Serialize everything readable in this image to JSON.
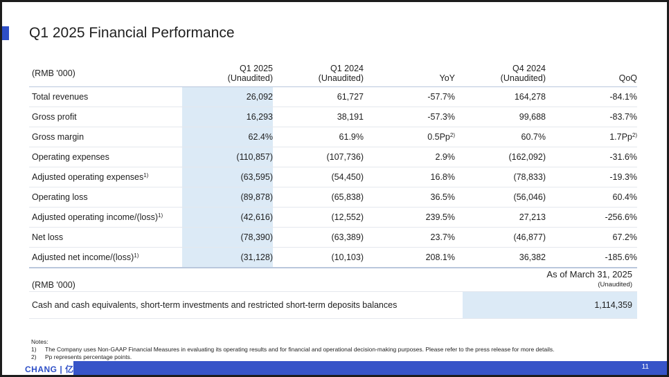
{
  "page": {
    "title": "Q1 2025 Financial Performance",
    "number": "11",
    "logo_text": "CHANG | 亿航"
  },
  "colors": {
    "accent": "#2e4fc7",
    "highlight": "#dceaf6",
    "footer_bar": "#3754c8"
  },
  "table1": {
    "header": {
      "label": "(RMB '000)",
      "cols": [
        {
          "name": "Q1 2025",
          "sub": "(Unaudited)"
        },
        {
          "name": "Q1 2024",
          "sub": "(Unaudited)"
        },
        {
          "name": "YoY",
          "sub": ""
        },
        {
          "name": "Q4 2024",
          "sub": "(Unaudited)"
        },
        {
          "name": "QoQ",
          "sub": ""
        }
      ]
    },
    "rows": [
      {
        "label": "Total revenues",
        "label_sup": "",
        "values": [
          "26,092",
          "61,727",
          "-57.7%",
          "164,278",
          "-84.1%"
        ],
        "sups": [
          "",
          "",
          "",
          "",
          ""
        ]
      },
      {
        "label": "Gross profit",
        "label_sup": "",
        "values": [
          "16,293",
          "38,191",
          "-57.3%",
          "99,688",
          "-83.7%"
        ],
        "sups": [
          "",
          "",
          "",
          "",
          ""
        ]
      },
      {
        "label": "Gross margin",
        "label_sup": "",
        "values": [
          "62.4%",
          "61.9%",
          "0.5Pp",
          "60.7%",
          "1.7Pp"
        ],
        "sups": [
          "",
          "",
          "2)",
          "",
          "2)"
        ]
      },
      {
        "label": "Operating expenses",
        "label_sup": "",
        "values": [
          "(110,857)",
          "(107,736)",
          "2.9%",
          "(162,092)",
          "-31.6%"
        ],
        "sups": [
          "",
          "",
          "",
          "",
          ""
        ]
      },
      {
        "label": "Adjusted operating expenses",
        "label_sup": "1)",
        "values": [
          "(63,595)",
          "(54,450)",
          "16.8%",
          "(78,833)",
          "-19.3%"
        ],
        "sups": [
          "",
          "",
          "",
          "",
          ""
        ]
      },
      {
        "label": "Operating loss",
        "label_sup": "",
        "values": [
          "(89,878)",
          "(65,838)",
          "36.5%",
          "(56,046)",
          "60.4%"
        ],
        "sups": [
          "",
          "",
          "",
          "",
          ""
        ]
      },
      {
        "label": "Adjusted operating income/(loss)",
        "label_sup": "1)",
        "values": [
          "(42,616)",
          "(12,552)",
          "239.5%",
          "27,213",
          "-256.6%"
        ],
        "sups": [
          "",
          "",
          "",
          "",
          ""
        ]
      },
      {
        "label": "Net loss",
        "label_sup": "",
        "values": [
          "(78,390)",
          "(63,389)",
          "23.7%",
          "(46,877)",
          "67.2%"
        ],
        "sups": [
          "",
          "",
          "",
          "",
          ""
        ]
      },
      {
        "label": "Adjusted net income/(loss)",
        "label_sup": "1)",
        "values": [
          "(31,128)",
          "(10,103)",
          "208.1%",
          "36,382",
          "-185.6%"
        ],
        "sups": [
          "",
          "",
          "",
          "",
          ""
        ]
      }
    ]
  },
  "table2": {
    "label": "(RMB '000)",
    "col_title": "As of March 31, 2025",
    "col_sub": "(Unaudited)",
    "row_label": "Cash and cash equivalents, short-term investments and restricted short-term deposits balances",
    "row_value": "1,114,359"
  },
  "notes": {
    "title": "Notes:",
    "items": [
      {
        "num": "1)",
        "text": "The Company uses Non-GAAP Financial Measures in evaluating its operating results and for financial and operational decision-making purposes. Please refer to the press release for more details."
      },
      {
        "num": "2)",
        "text": "Pp represents percentage points."
      }
    ]
  }
}
